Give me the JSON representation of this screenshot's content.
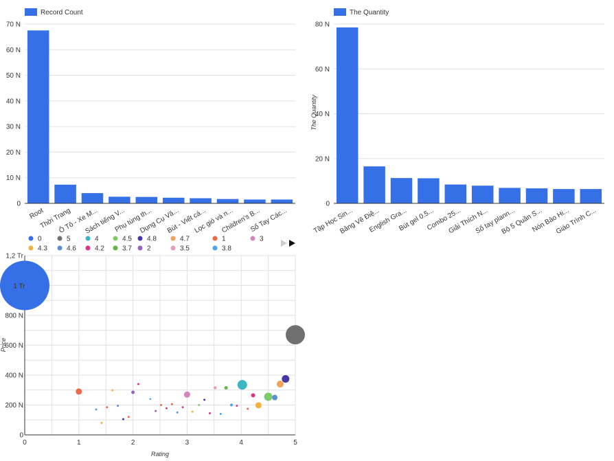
{
  "chart_data": [
    {
      "type": "bar",
      "legend": "Record Count",
      "color": "#3670e6",
      "categories": [
        "Root",
        "Thời Trang",
        "Ô Tô - Xe M...",
        "Sách tiếng V...",
        "Phụ tùng th...",
        "Dụng Cụ Vă...",
        "Bút - Viết cá...",
        "Lọc gió và n...",
        "Children's B...",
        "Sổ Tay Các..."
      ],
      "values": [
        67500,
        7300,
        4000,
        2600,
        2500,
        2200,
        2000,
        1700,
        1500,
        1500
      ],
      "ylim": [
        0,
        70000
      ],
      "yticks": [
        0,
        10000,
        20000,
        30000,
        40000,
        50000,
        60000,
        70000
      ],
      "ytick_labels": [
        "0",
        "10 N",
        "20 N",
        "30 N",
        "40 N",
        "50 N",
        "60 N",
        "70 N"
      ],
      "ylabel": ""
    },
    {
      "type": "bar",
      "legend": "The Quantity",
      "color": "#3670e6",
      "categories": [
        "Tập Học Sin...",
        "Bảng Vẽ Điệ...",
        "English Gra...",
        "Bút gel 0.5...",
        "Combo 25...",
        "Giải Thích N...",
        "Sổ tay plann...",
        "Bộ 5 Quần S...",
        "Nón Bảo Hi...",
        "Giáo Trình C..."
      ],
      "values": [
        78500,
        16500,
        11300,
        11200,
        8400,
        7900,
        6900,
        6700,
        6400,
        6400
      ],
      "ylim": [
        0,
        80000
      ],
      "yticks": [
        0,
        20000,
        40000,
        60000,
        80000
      ],
      "ytick_labels": [
        "0",
        "20 N",
        "40 N",
        "60 N",
        "80 N"
      ],
      "ylabel": "The Quantity"
    },
    {
      "type": "scatter",
      "xlabel": "Rating",
      "ylabel": "Price",
      "xlim": [
        0,
        5
      ],
      "ylim": [
        0,
        1200000
      ],
      "xticks": [
        0,
        1,
        2,
        3,
        4,
        5
      ],
      "xtick_labels": [
        "0",
        "1",
        "2",
        "3",
        "4",
        "5"
      ],
      "yticks": [
        0,
        200000,
        400000,
        600000,
        800000,
        1000000,
        1200000
      ],
      "ytick_labels": [
        "0",
        "200 N",
        "400 N",
        "600 N",
        "800 N",
        "1 Tr",
        "1,2 Tr"
      ],
      "legend": [
        {
          "name": "0",
          "color": "#3670e6"
        },
        {
          "name": "5",
          "color": "#707070"
        },
        {
          "name": "4",
          "color": "#3fb6c4"
        },
        {
          "name": "4.5",
          "color": "#7fcc6e"
        },
        {
          "name": "4.8",
          "color": "#4b36a6"
        },
        {
          "name": "4.7",
          "color": "#f0a35b"
        },
        {
          "name": "1",
          "color": "#ec6a4a"
        },
        {
          "name": "3",
          "color": "#d084c0"
        },
        {
          "name": "4.3",
          "color": "#f0b340"
        },
        {
          "name": "4.6",
          "color": "#5a8fd4"
        },
        {
          "name": "4.2",
          "color": "#d9348a"
        },
        {
          "name": "3.7",
          "color": "#62b546"
        },
        {
          "name": "2",
          "color": "#9b62c2"
        },
        {
          "name": "3.5",
          "color": "#ec9bc0"
        },
        {
          "name": "3.8",
          "color": "#4aa3e6"
        }
      ],
      "bubble_label": "1 Tr",
      "points": [
        {
          "x": 0,
          "y": 1000000,
          "r": 36,
          "c": "#3670e6"
        },
        {
          "x": 5,
          "y": 670000,
          "r": 14,
          "c": "#707070"
        },
        {
          "x": 4.02,
          "y": 335000,
          "r": 7,
          "c": "#3fb6c4"
        },
        {
          "x": 4.5,
          "y": 255000,
          "r": 6,
          "c": "#7fcc6e"
        },
        {
          "x": 4.82,
          "y": 375000,
          "r": 5.5,
          "c": "#4b36a6"
        },
        {
          "x": 4.72,
          "y": 340000,
          "r": 5,
          "c": "#f0a35b"
        },
        {
          "x": 1.0,
          "y": 290000,
          "r": 4.5,
          "c": "#ec6a4a"
        },
        {
          "x": 3.0,
          "y": 270000,
          "r": 4.5,
          "c": "#d084c0"
        },
        {
          "x": 4.32,
          "y": 198000,
          "r": 4.5,
          "c": "#f0b340"
        },
        {
          "x": 4.62,
          "y": 250000,
          "r": 4,
          "c": "#5a8fd4"
        },
        {
          "x": 4.22,
          "y": 265000,
          "r": 3,
          "c": "#d9348a"
        },
        {
          "x": 3.72,
          "y": 315000,
          "r": 2.5,
          "c": "#62b546"
        },
        {
          "x": 2.0,
          "y": 285000,
          "r": 2.5,
          "c": "#9b62c2"
        },
        {
          "x": 3.52,
          "y": 315000,
          "r": 2.2,
          "c": "#ec9bc0"
        },
        {
          "x": 3.82,
          "y": 200000,
          "r": 2,
          "c": "#4aa3e6"
        },
        {
          "x": 1.32,
          "y": 170000,
          "r": 1.5,
          "c": "#4aa3e6"
        },
        {
          "x": 1.42,
          "y": 80000,
          "r": 1.5,
          "c": "#f0b340"
        },
        {
          "x": 1.52,
          "y": 185000,
          "r": 1.5,
          "c": "#ec6a4a"
        },
        {
          "x": 1.62,
          "y": 298000,
          "r": 1.5,
          "c": "#f0b340"
        },
        {
          "x": 1.72,
          "y": 195000,
          "r": 1.5,
          "c": "#5a8fd4"
        },
        {
          "x": 1.82,
          "y": 105000,
          "r": 1.5,
          "c": "#4b36a6"
        },
        {
          "x": 1.92,
          "y": 120000,
          "r": 1.5,
          "c": "#ec6a4a"
        },
        {
          "x": 2.1,
          "y": 340000,
          "r": 1.5,
          "c": "#d9348a"
        },
        {
          "x": 2.32,
          "y": 240000,
          "r": 1.3,
          "c": "#4aa3e6"
        },
        {
          "x": 2.42,
          "y": 160000,
          "r": 1.5,
          "c": "#9b62c2"
        },
        {
          "x": 2.52,
          "y": 200000,
          "r": 1.5,
          "c": "#ec6a4a"
        },
        {
          "x": 2.62,
          "y": 178000,
          "r": 1.5,
          "c": "#d9348a"
        },
        {
          "x": 2.72,
          "y": 205000,
          "r": 1.5,
          "c": "#ec6a4a"
        },
        {
          "x": 2.82,
          "y": 150000,
          "r": 1.5,
          "c": "#4aa3e6"
        },
        {
          "x": 2.92,
          "y": 185000,
          "r": 1.5,
          "c": "#d9348a"
        },
        {
          "x": 3.1,
          "y": 155000,
          "r": 1.5,
          "c": "#f0b340"
        },
        {
          "x": 3.22,
          "y": 200000,
          "r": 1.5,
          "c": "#7fcc6e"
        },
        {
          "x": 3.32,
          "y": 235000,
          "r": 1.5,
          "c": "#4b36a6"
        },
        {
          "x": 3.42,
          "y": 145000,
          "r": 1.5,
          "c": "#d9348a"
        },
        {
          "x": 3.62,
          "y": 140000,
          "r": 1.5,
          "c": "#4aa3e6"
        },
        {
          "x": 3.92,
          "y": 195000,
          "r": 1.5,
          "c": "#d9348a"
        },
        {
          "x": 4.12,
          "y": 175000,
          "r": 1.5,
          "c": "#ec6a4a"
        }
      ]
    }
  ]
}
